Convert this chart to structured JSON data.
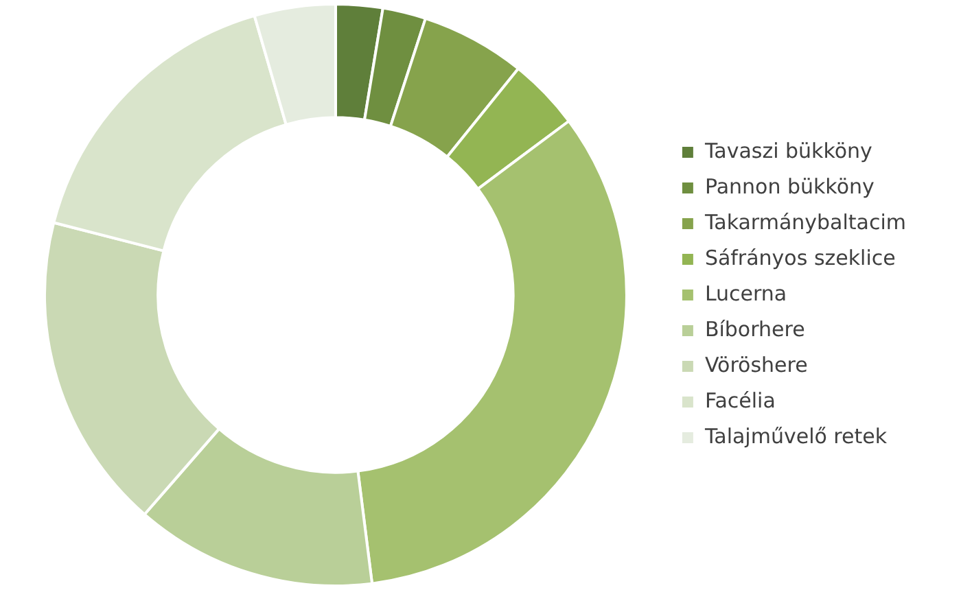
{
  "chart_data": {
    "type": "donut",
    "categories": [
      "Tavaszi bükköny",
      "Pannon bükköny",
      "Takarmánybaltacim",
      "Sáfrányos szeklice",
      "Lucerna",
      "Bíborhere",
      "Vöröshere",
      "Facélia",
      "Talajművelő retek"
    ],
    "values": [
      2.6,
      2.4,
      5.8,
      4.0,
      33.2,
      13.4,
      17.6,
      16.5,
      4.5
    ],
    "colors": [
      "#5f7f3a",
      "#6f8f40",
      "#86a34c",
      "#93b553",
      "#a5c16f",
      "#b9cf98",
      "#cad9b4",
      "#d9e4cb",
      "#e5ecdf"
    ],
    "legend": "right"
  }
}
